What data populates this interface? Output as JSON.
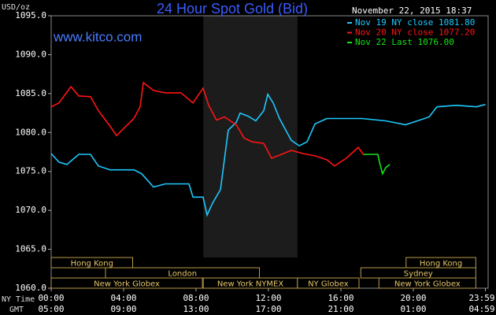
{
  "chart_data": {
    "type": "line",
    "title": "24 Hour Spot Gold (Bid)",
    "watermark": "www.kitco.com",
    "timestamp": "November 22, 2015 18:37",
    "ylabel": "USD/oz",
    "xlabel": "NY Time",
    "xlabel2": "GMT",
    "xlim": [
      0,
      24
    ],
    "ylim": [
      1060,
      1095
    ],
    "yticks": [
      {
        "value": 1060,
        "label": "1060.0"
      },
      {
        "value": 1065,
        "label": "1065.0"
      },
      {
        "value": 1070,
        "label": "1070.0"
      },
      {
        "value": 1075,
        "label": "1075.0"
      },
      {
        "value": 1080,
        "label": "1080.0"
      },
      {
        "value": 1085,
        "label": "1085.0"
      },
      {
        "value": 1090,
        "label": "1090.0"
      },
      {
        "value": 1095,
        "label": "1095.0"
      }
    ],
    "xticks": [
      {
        "value": 0,
        "label": "00:00"
      },
      {
        "value": 4,
        "label": "04:00"
      },
      {
        "value": 8,
        "label": "08:00"
      },
      {
        "value": 12,
        "label": "12:00"
      },
      {
        "value": 16,
        "label": "16:00"
      },
      {
        "value": 20,
        "label": "20:00"
      },
      {
        "value": 23.98,
        "label": "23:59"
      }
    ],
    "xticks_gmt": [
      "05:00",
      "09:00",
      "13:00",
      "17:00",
      "21:00",
      "01:00",
      "04:59"
    ],
    "series": [
      {
        "name": "Nov 19 NY close 1081.80",
        "color": "#1ec8ff",
        "x": [
          0,
          0.43,
          0.87,
          1.52,
          2.17,
          2.61,
          3.26,
          4.57,
          5,
          5.65,
          6.3,
          7.61,
          7.83,
          8.39,
          8.61,
          8.91,
          9.35,
          9.78,
          10.22,
          10.43,
          10.87,
          11.3,
          11.74,
          11.96,
          12.26,
          12.61,
          13.26,
          13.7,
          14.13,
          14.57,
          15.22,
          15.87,
          17.17,
          18.48,
          19.57,
          20.22,
          20.87,
          21.3,
          22.39,
          23.48,
          23.98
        ],
        "values": [
          1077.3,
          1076.2,
          1075.9,
          1077.2,
          1077.2,
          1075.7,
          1075.2,
          1075.2,
          1074.7,
          1073.0,
          1073.4,
          1073.4,
          1071.7,
          1071.7,
          1069.4,
          1070.9,
          1072.7,
          1080.3,
          1081.3,
          1082.5,
          1082.1,
          1081.5,
          1082.8,
          1084.9,
          1083.8,
          1081.8,
          1079.0,
          1078.3,
          1078.8,
          1081.1,
          1081.8,
          1081.8,
          1081.8,
          1081.5,
          1081.0,
          1081.5,
          1082.0,
          1083.3,
          1083.5,
          1083.3,
          1083.6
        ]
      },
      {
        "name": "Nov 20 NY close 1077.20",
        "color": "#ff1414",
        "x": [
          0,
          0.43,
          1.09,
          1.52,
          2.17,
          2.61,
          3.26,
          3.61,
          3.91,
          4.57,
          4.91,
          5.09,
          5.65,
          6.3,
          7.17,
          7.83,
          8.39,
          8.7,
          9.13,
          9.57,
          10.22,
          10.65,
          11.09,
          11.74,
          12.17,
          12.83,
          13.26,
          13.91,
          14.57,
          15.22,
          15.65,
          16.3,
          16.96,
          17.26
        ],
        "values": [
          1083.3,
          1083.8,
          1085.9,
          1084.7,
          1084.6,
          1082.8,
          1080.8,
          1079.6,
          1080.3,
          1081.8,
          1083.3,
          1086.4,
          1085.4,
          1085.1,
          1085.1,
          1083.8,
          1085.7,
          1083.5,
          1081.6,
          1082.0,
          1081.0,
          1079.3,
          1078.8,
          1078.6,
          1076.7,
          1077.3,
          1077.7,
          1077.3,
          1077.0,
          1076.5,
          1075.7,
          1076.7,
          1078.1,
          1077.1
        ]
      },
      {
        "name": "Nov 22 Last 1076.00",
        "color": "#14e614",
        "x": [
          17.26,
          18.04,
          18.13,
          18.3,
          18.48,
          18.7
        ],
        "values": [
          1077.2,
          1077.2,
          1076.2,
          1074.7,
          1075.5,
          1075.9
        ]
      }
    ],
    "sessions": [
      [
        {
          "name": "Hong Kong",
          "start": 0,
          "end": 4.5
        },
        {
          "name": "Hong Kong",
          "start": 19.6,
          "end": 23.45
        }
      ],
      [
        {
          "name": "London",
          "start": 3,
          "end": 11.5
        },
        {
          "name": "Sydney",
          "start": 17.1,
          "end": 23.45
        }
      ],
      [
        {
          "name": "New York Globex",
          "start": 0,
          "end": 8.35
        },
        {
          "name": "New York NYMEX",
          "start": 8.4,
          "end": 13.6,
          "shaded": true
        },
        {
          "name": "NY Globex",
          "start": 13.6,
          "end": 17.0
        },
        {
          "name": "New York Globex",
          "start": 18.1,
          "end": 23.45
        }
      ]
    ]
  }
}
